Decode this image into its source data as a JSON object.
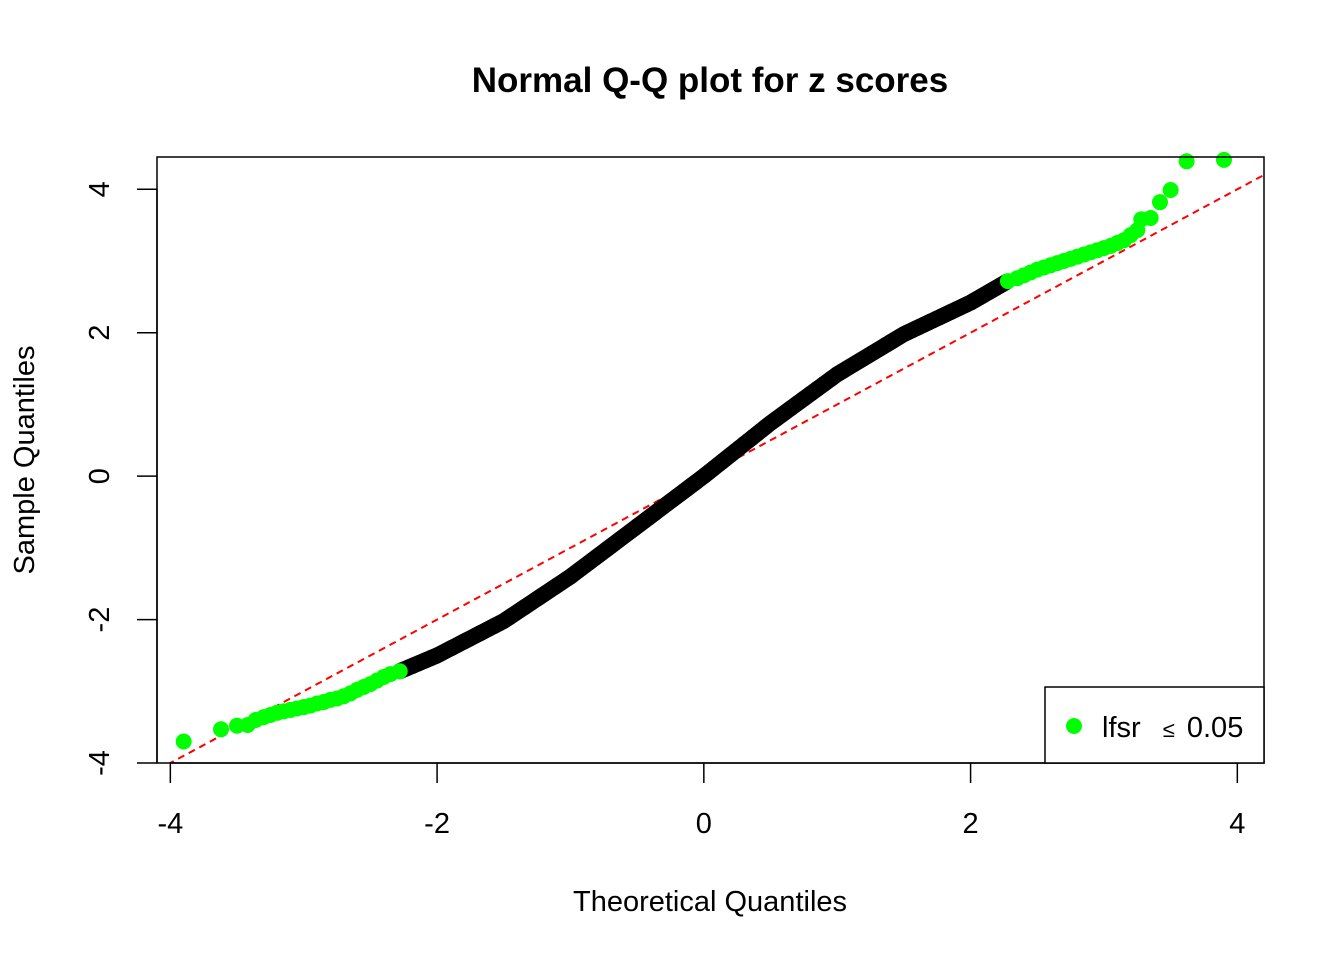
{
  "chart_data": {
    "type": "scatter",
    "title": "Normal Q-Q plot for z scores",
    "xlabel": "Theoretical Quantiles",
    "ylabel": "Sample Quantiles",
    "xlim": [
      -4.1,
      4.2
    ],
    "ylim": [
      -4.0,
      4.45
    ],
    "x_ticks": [
      -4,
      -2,
      0,
      2,
      4
    ],
    "x_tick_labels": [
      "-4",
      "-2",
      "0",
      "2",
      "4"
    ],
    "y_ticks": [
      -4,
      -2,
      0,
      2,
      4
    ],
    "y_tick_labels": [
      "-4",
      "-2",
      "0",
      "2",
      "4"
    ],
    "grid": false,
    "legend": {
      "position": "bottom-right",
      "entries": [
        {
          "label": "lfsr",
          "relation": "≤",
          "threshold": "0.05",
          "color": "#00ff00"
        }
      ]
    },
    "reference_line": {
      "intercept": 0,
      "slope": 1,
      "color": "#ff0000",
      "style": "dashed"
    },
    "colors": {
      "significant": "#00ff00",
      "other": "#000000"
    },
    "series": [
      {
        "name": "lfsr ≤ 0.05",
        "color": "#00ff00",
        "points": [
          [
            -3.9,
            -3.7
          ],
          [
            -3.62,
            -3.53
          ],
          [
            -3.5,
            -3.48
          ],
          [
            -3.42,
            -3.47
          ],
          [
            -3.36,
            -3.4
          ],
          [
            -3.3,
            -3.36
          ],
          [
            -3.25,
            -3.33
          ],
          [
            -3.2,
            -3.3
          ],
          [
            -3.15,
            -3.28
          ],
          [
            -3.1,
            -3.26
          ],
          [
            -3.05,
            -3.24
          ],
          [
            -3.0,
            -3.22
          ],
          [
            -2.95,
            -3.2
          ],
          [
            -2.9,
            -3.17
          ],
          [
            -2.85,
            -3.15
          ],
          [
            -2.8,
            -3.12
          ],
          [
            -2.75,
            -3.1
          ],
          [
            -2.7,
            -3.07
          ],
          [
            -2.65,
            -3.03
          ],
          [
            -2.6,
            -2.98
          ],
          [
            -2.55,
            -2.94
          ],
          [
            -2.5,
            -2.9
          ],
          [
            -2.45,
            -2.85
          ],
          [
            -2.4,
            -2.8
          ],
          [
            -2.35,
            -2.76
          ],
          [
            -2.28,
            -2.72
          ],
          [
            2.28,
            2.72
          ],
          [
            2.35,
            2.76
          ],
          [
            2.4,
            2.8
          ],
          [
            2.45,
            2.84
          ],
          [
            2.5,
            2.88
          ],
          [
            2.55,
            2.91
          ],
          [
            2.6,
            2.94
          ],
          [
            2.65,
            2.97
          ],
          [
            2.7,
            3.0
          ],
          [
            2.75,
            3.03
          ],
          [
            2.8,
            3.06
          ],
          [
            2.85,
            3.09
          ],
          [
            2.9,
            3.12
          ],
          [
            2.95,
            3.15
          ],
          [
            3.0,
            3.18
          ],
          [
            3.05,
            3.21
          ],
          [
            3.1,
            3.25
          ],
          [
            3.15,
            3.29
          ],
          [
            3.2,
            3.36
          ],
          [
            3.25,
            3.43
          ],
          [
            3.28,
            3.58
          ],
          [
            3.35,
            3.6
          ],
          [
            3.42,
            3.82
          ],
          [
            3.5,
            3.99
          ],
          [
            3.62,
            4.39
          ],
          [
            3.9,
            4.41
          ]
        ]
      },
      {
        "name": "",
        "color": "#000000",
        "curve": [
          [
            -2.28,
            -2.72
          ],
          [
            -2.0,
            -2.5
          ],
          [
            -1.5,
            -2.02
          ],
          [
            -1.0,
            -1.4
          ],
          [
            -0.5,
            -0.7
          ],
          [
            0.0,
            0.0
          ],
          [
            0.5,
            0.74
          ],
          [
            1.0,
            1.42
          ],
          [
            1.5,
            1.98
          ],
          [
            2.0,
            2.42
          ],
          [
            2.28,
            2.72
          ]
        ]
      }
    ]
  }
}
